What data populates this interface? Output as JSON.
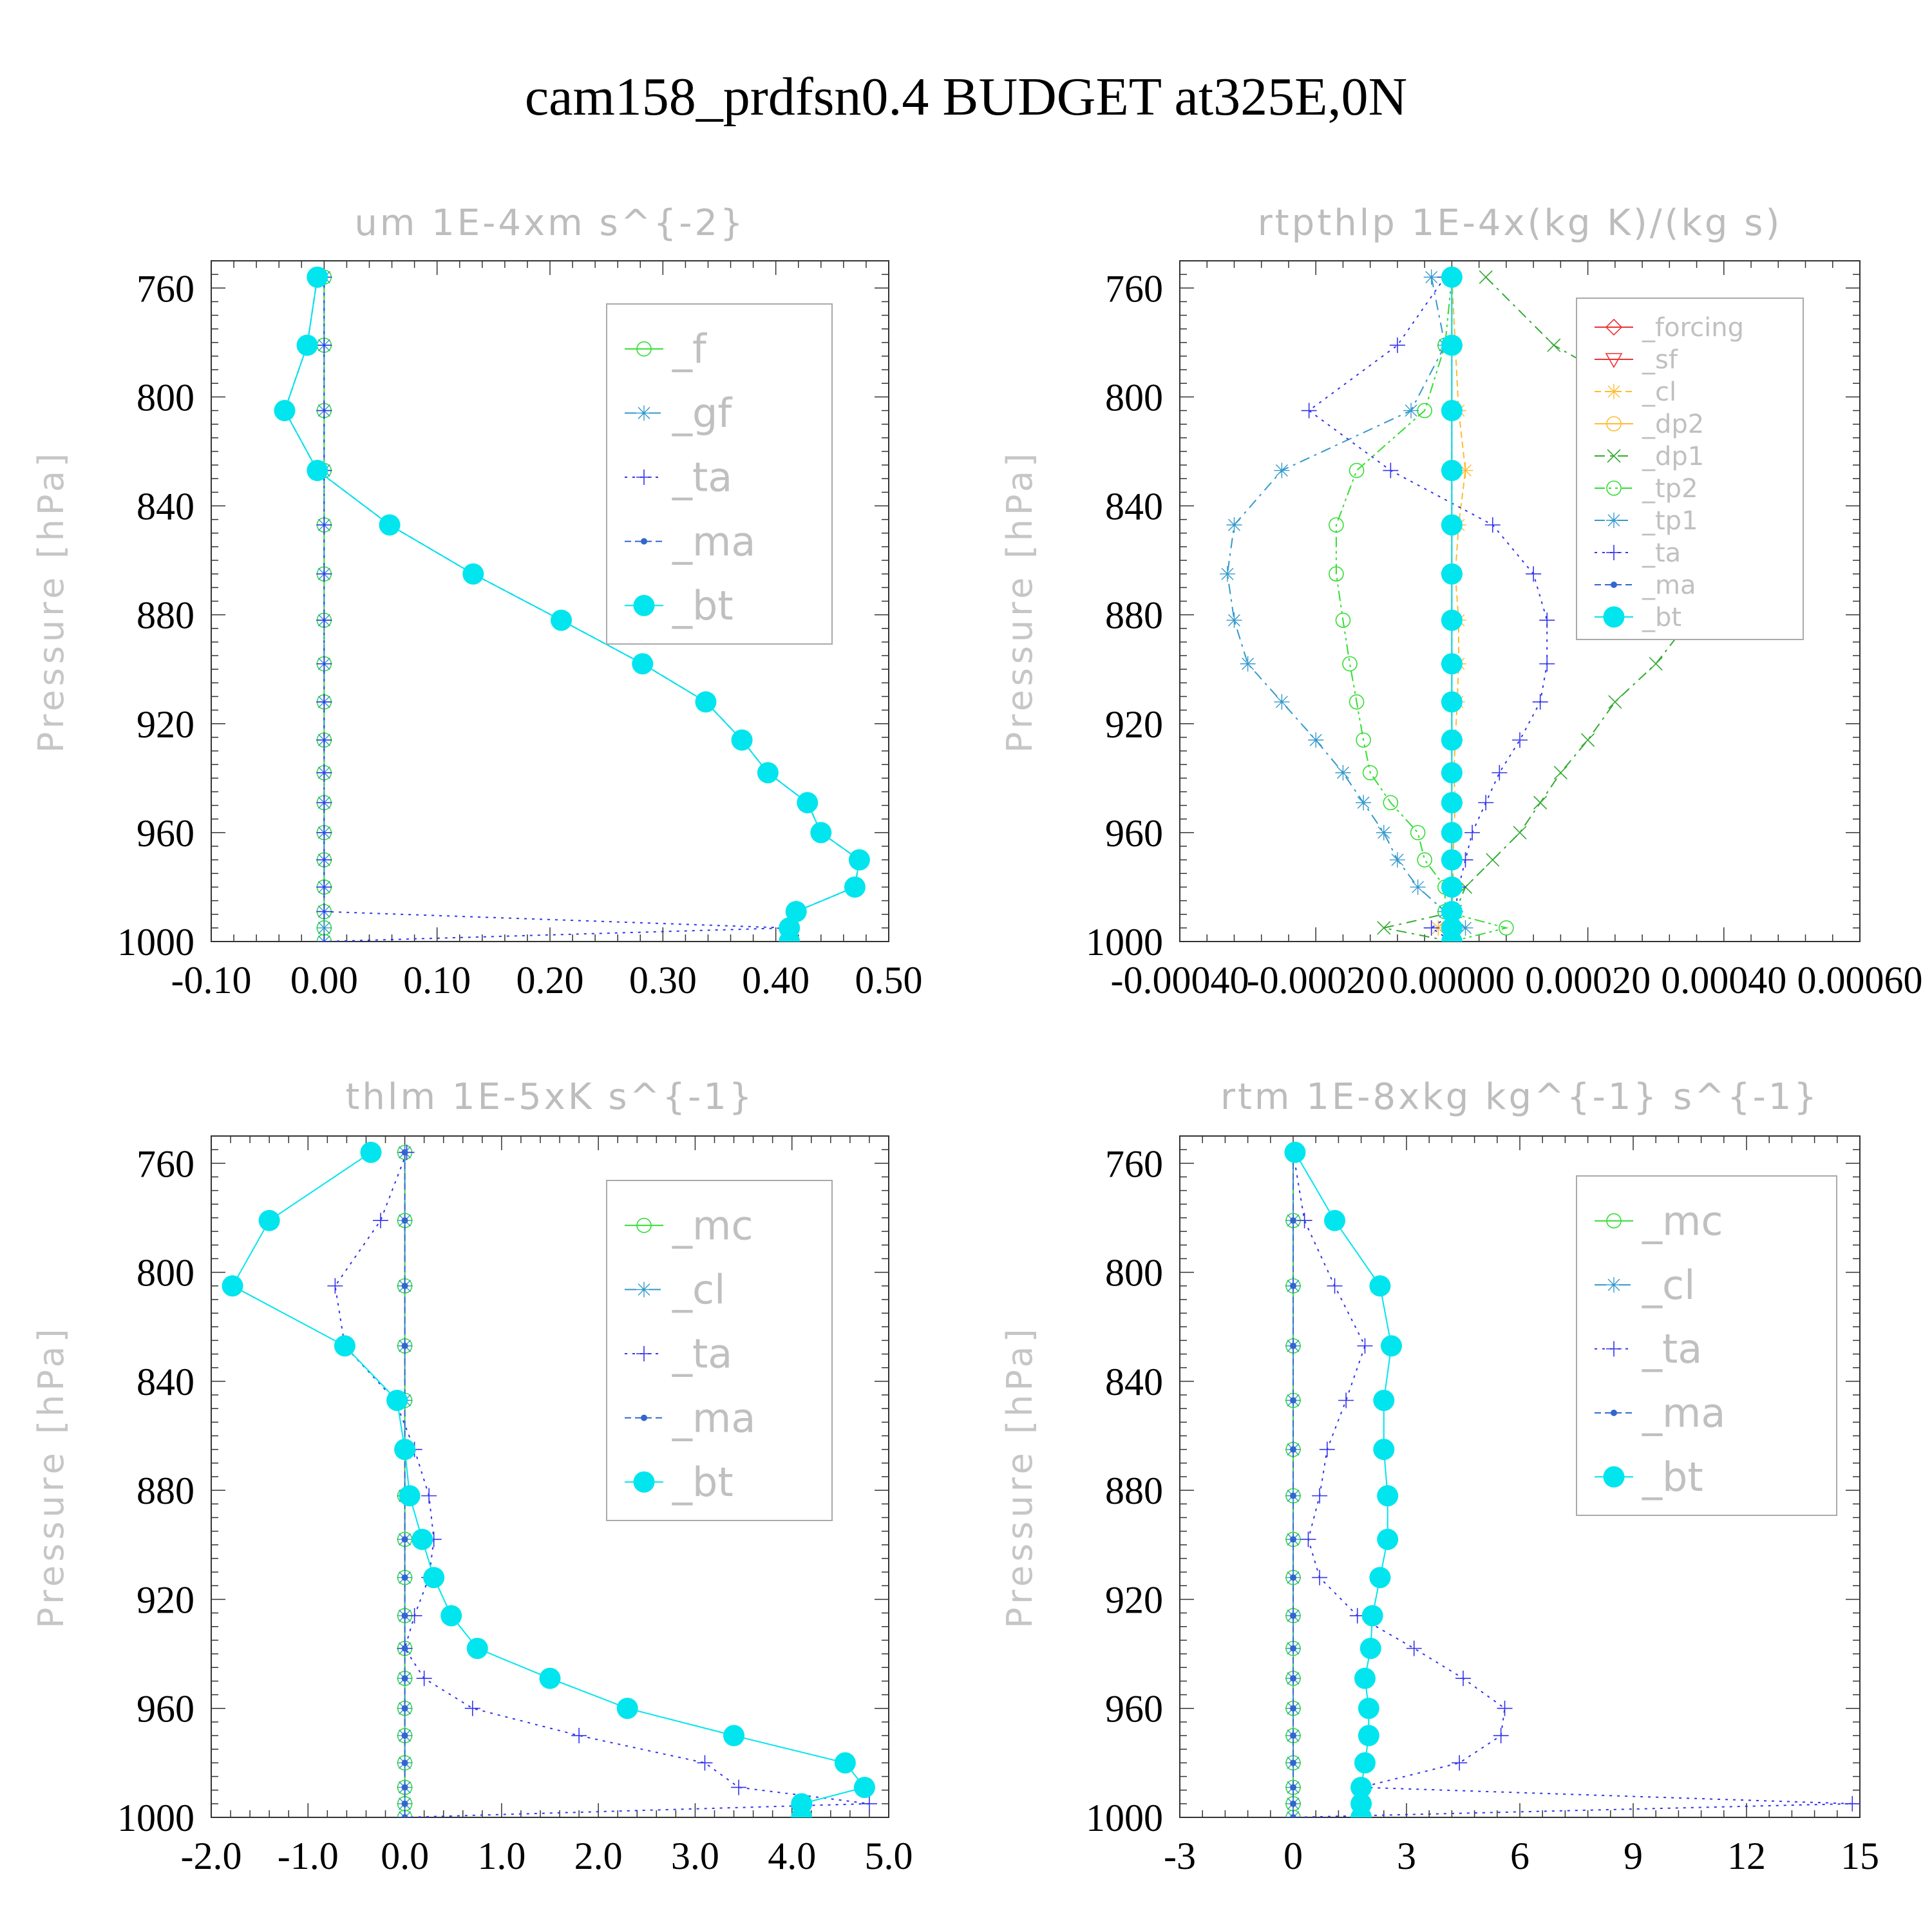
{
  "title": "cam158_prdfsn0.4  BUDGET at325E,0N",
  "chart_data": [
    {
      "type": "line",
      "title": "um  1E-4xm s^{-2}",
      "ylabel": "Pressure [hPa]",
      "xlim": [
        -0.1,
        0.5
      ],
      "ylim": [
        1000,
        750
      ],
      "xticks": [
        "-0.10",
        "0.00",
        "0.10",
        "0.20",
        "0.30",
        "0.40",
        "0.50"
      ],
      "yticks": [
        "760",
        "800",
        "840",
        "880",
        "920",
        "960",
        "1000"
      ],
      "pressure": [
        756,
        781,
        805,
        827,
        847,
        865,
        882,
        898,
        912,
        926,
        938,
        949,
        960,
        970,
        980,
        989,
        995,
        1000
      ],
      "series": [
        {
          "name": "_f",
          "color": "#33dd33",
          "dash": "",
          "marker": "circle-open",
          "values": [
            0,
            0,
            0,
            0,
            0,
            0,
            0,
            0,
            0,
            0,
            0,
            0,
            0,
            0,
            0,
            0,
            0,
            0
          ]
        },
        {
          "name": "_gf",
          "color": "#3399cc",
          "dash": "18,8,4,8",
          "marker": "star",
          "values": [
            0,
            0,
            0,
            0,
            0,
            0,
            0,
            0,
            0,
            0,
            0,
            0,
            0,
            0,
            0,
            0,
            0,
            0
          ]
        },
        {
          "name": "_ta",
          "color": "#3333ee",
          "dash": "4,8",
          "marker": "plus",
          "values": [
            0,
            0,
            0,
            0,
            0,
            0,
            0,
            0,
            0,
            0,
            0,
            0,
            0,
            0,
            0,
            0,
            0.41,
            0
          ]
        },
        {
          "name": "_ma",
          "color": "#3366cc",
          "dash": "10,6",
          "marker": "dot",
          "values": [
            -0.006,
            -0.015,
            -0.035,
            -0.006,
            0.058,
            0.132,
            0.21,
            0.282,
            0.338,
            0.37,
            0.393,
            0.428,
            0.44,
            0.474,
            0.47,
            0.418,
            0.412,
            0.412
          ]
        },
        {
          "name": "_bt",
          "color": "#00e5ee",
          "dash": "",
          "marker": "filled",
          "values": [
            -0.006,
            -0.015,
            -0.035,
            -0.006,
            0.058,
            0.132,
            0.21,
            0.282,
            0.338,
            0.37,
            0.393,
            0.428,
            0.44,
            0.474,
            0.47,
            0.418,
            0.412,
            0.412
          ]
        }
      ],
      "legend_fs": 62
    },
    {
      "type": "line",
      "title": "rtpthlp  1E-4x(kg K)/(kg s)",
      "ylabel": "Pressure [hPa]",
      "xlim": [
        -0.0004,
        0.0006
      ],
      "ylim": [
        1000,
        750
      ],
      "xticks": [
        "-0.00040",
        "-0.00020",
        "0.00000",
        "0.00020",
        "0.00040",
        "0.00060"
      ],
      "yticks": [
        "760",
        "800",
        "840",
        "880",
        "920",
        "960",
        "1000"
      ],
      "pressure": [
        756,
        781,
        805,
        827,
        847,
        865,
        882,
        898,
        912,
        926,
        938,
        949,
        960,
        970,
        980,
        989,
        995,
        1000
      ],
      "series": [
        {
          "name": "_forcing",
          "color": "#ee3333",
          "dash": "",
          "marker": "diamond",
          "values": [
            0,
            0,
            0,
            0,
            0,
            0,
            0,
            0,
            0,
            0,
            0,
            0,
            0,
            0,
            0,
            0,
            0,
            0
          ]
        },
        {
          "name": "_sf",
          "color": "#ee3333",
          "dash": "",
          "marker": "triangle",
          "values": [
            0,
            0,
            0,
            0,
            0,
            0,
            0,
            0,
            0,
            0,
            0,
            0,
            0,
            0,
            0,
            0,
            0,
            0
          ]
        },
        {
          "name": "_cl",
          "color": "#ffbb33",
          "dash": "10,6",
          "marker": "star",
          "values": [
            0,
            5e-06,
            1e-05,
            2e-05,
            1e-05,
            5e-06,
            1e-05,
            1e-05,
            8e-06,
            5e-06,
            3e-06,
            5e-06,
            3e-06,
            2e-06,
            2e-06,
            0,
            -2e-05,
            0
          ]
        },
        {
          "name": "_dp2",
          "color": "#ffbb33",
          "dash": "",
          "marker": "circle-open",
          "values": [
            0,
            0,
            0,
            0,
            0,
            0,
            0,
            0,
            0,
            0,
            0,
            0,
            0,
            0,
            0,
            0,
            0,
            0
          ]
        },
        {
          "name": "_dp1",
          "color": "#33aa33",
          "dash": "16,8,4,8",
          "marker": "x",
          "values": [
            5e-05,
            0.00015,
            0.00032,
            0.00046,
            0.00044,
            0.0004,
            0.00035,
            0.0003,
            0.00024,
            0.0002,
            0.00016,
            0.00013,
            0.0001,
            6e-05,
            2e-05,
            5e-06,
            -0.0001,
            0
          ]
        },
        {
          "name": "_tp2",
          "color": "#33dd33",
          "dash": "16,6,4,6,4,6",
          "marker": "circle-open",
          "values": [
            0,
            -1e-05,
            -4e-05,
            -0.00014,
            -0.00017,
            -0.00017,
            -0.00016,
            -0.00015,
            -0.00014,
            -0.00013,
            -0.00012,
            -9e-05,
            -5e-05,
            -4e-05,
            -1e-05,
            -1e-05,
            8e-05,
            0
          ]
        },
        {
          "name": "_tp1",
          "color": "#3399cc",
          "dash": "16,8,4,8",
          "marker": "star",
          "values": [
            -3e-05,
            -1e-05,
            -6e-05,
            -0.00025,
            -0.00032,
            -0.00033,
            -0.00032,
            -0.0003,
            -0.00025,
            -0.0002,
            -0.00016,
            -0.00013,
            -0.0001,
            -8e-05,
            -5e-05,
            -1e-05,
            2e-05,
            0
          ]
        },
        {
          "name": "_ta",
          "color": "#3333ee",
          "dash": "4,8",
          "marker": "plus",
          "values": [
            -1e-05,
            -8e-05,
            -0.00021,
            -9e-05,
            6e-05,
            0.00012,
            0.00014,
            0.00014,
            0.00013,
            0.0001,
            7e-05,
            5e-05,
            3e-05,
            2e-05,
            1e-05,
            5e-06,
            -3e-05,
            0
          ]
        },
        {
          "name": "_ma",
          "color": "#3366cc",
          "dash": "10,6",
          "marker": "dot",
          "values": [
            0,
            0,
            0,
            0,
            0,
            0,
            0,
            0,
            0,
            0,
            0,
            0,
            0,
            0,
            0,
            0,
            0,
            0
          ]
        },
        {
          "name": "_bt",
          "color": "#00e5ee",
          "dash": "",
          "marker": "filled",
          "values": [
            0,
            0,
            0,
            0,
            0,
            0,
            0,
            0,
            0,
            0,
            0,
            0,
            0,
            0,
            0,
            0,
            0,
            0
          ]
        }
      ],
      "legend_fs": 40
    },
    {
      "type": "line",
      "title": "thlm  1E-5xK s^{-1}",
      "ylabel": "Pressure [hPa]",
      "xlim": [
        -2.0,
        5.0
      ],
      "ylim": [
        1000,
        750
      ],
      "xticks": [
        "-2.0",
        "-1.0",
        "0.0",
        "1.0",
        "2.0",
        "3.0",
        "4.0",
        "5.0"
      ],
      "yticks": [
        "760",
        "800",
        "840",
        "880",
        "920",
        "960",
        "1000"
      ],
      "pressure": [
        756,
        781,
        805,
        827,
        847,
        865,
        882,
        898,
        912,
        926,
        938,
        949,
        960,
        970,
        980,
        989,
        995,
        1000
      ],
      "series": [
        {
          "name": "_mc",
          "color": "#33dd33",
          "dash": "",
          "marker": "circle-open",
          "values": [
            0,
            0,
            0,
            0,
            0,
            0,
            0,
            0,
            0,
            0,
            0,
            0,
            0,
            0,
            0,
            0,
            0,
            0
          ]
        },
        {
          "name": "_cl",
          "color": "#3399cc",
          "dash": "18,8,4,8",
          "marker": "star",
          "values": [
            0,
            0,
            0,
            0,
            0,
            0,
            0,
            0,
            0,
            0,
            0,
            0,
            0,
            0,
            0,
            0,
            0,
            0
          ]
        },
        {
          "name": "_ta",
          "color": "#3333ee",
          "dash": "4,8",
          "marker": "plus",
          "values": [
            0.02,
            -0.25,
            -0.72,
            -0.62,
            -0.1,
            0.1,
            0.25,
            0.3,
            0.25,
            0.1,
            0.0,
            0.2,
            0.7,
            1.8,
            3.1,
            3.45,
            4.8,
            0
          ]
        },
        {
          "name": "_ma",
          "color": "#3366cc",
          "dash": "10,6",
          "marker": "dot",
          "values": [
            0,
            0,
            0,
            0,
            0,
            0,
            0,
            0,
            0,
            0,
            0,
            0,
            0,
            0,
            0,
            0,
            0,
            0
          ]
        },
        {
          "name": "_bt",
          "color": "#00e5ee",
          "dash": "",
          "marker": "filled",
          "values": [
            -0.35,
            -1.4,
            -1.78,
            -0.62,
            -0.08,
            0.0,
            0.05,
            0.18,
            0.3,
            0.48,
            0.75,
            1.5,
            2.3,
            3.4,
            4.55,
            4.75,
            4.1,
            4.1
          ]
        }
      ],
      "legend_fs": 62
    },
    {
      "type": "line",
      "title": "rtm  1E-8xkg kg^{-1} s^{-1}",
      "ylabel": "Pressure [hPa]",
      "xlim": [
        -3,
        15
      ],
      "ylim": [
        1000,
        750
      ],
      "xticks": [
        "-3",
        "0",
        "3",
        "6",
        "9",
        "12",
        "15"
      ],
      "yticks": [
        "760",
        "800",
        "840",
        "880",
        "920",
        "960",
        "1000"
      ],
      "pressure": [
        756,
        781,
        805,
        827,
        847,
        865,
        882,
        898,
        912,
        926,
        938,
        949,
        960,
        970,
        980,
        989,
        995,
        1000
      ],
      "series": [
        {
          "name": "_mc",
          "color": "#33dd33",
          "dash": "",
          "marker": "circle-open",
          "values": [
            0,
            0,
            0,
            0,
            0,
            0,
            0,
            0,
            0,
            0,
            0,
            0,
            0,
            0,
            0,
            0,
            0,
            0
          ]
        },
        {
          "name": "_cl",
          "color": "#3399cc",
          "dash": "18,8,4,8",
          "marker": "star",
          "values": [
            0,
            0,
            0,
            0,
            0,
            0,
            0,
            0,
            0,
            0,
            0,
            0,
            0,
            0,
            0,
            0,
            0,
            0
          ]
        },
        {
          "name": "_ta",
          "color": "#3333ee",
          "dash": "4,8",
          "marker": "plus",
          "values": [
            0,
            0.3,
            1.1,
            1.9,
            1.4,
            0.9,
            0.7,
            0.4,
            0.7,
            1.7,
            3.2,
            4.5,
            5.6,
            5.5,
            4.4,
            1.8,
            14.8,
            0
          ]
        },
        {
          "name": "_ma",
          "color": "#3366cc",
          "dash": "10,6",
          "marker": "dot",
          "values": [
            0,
            0,
            0,
            0,
            0,
            0,
            0,
            0,
            0,
            0,
            0,
            0,
            0,
            0,
            0,
            0,
            0,
            0
          ]
        },
        {
          "name": "_bt",
          "color": "#00e5ee",
          "dash": "",
          "marker": "filled",
          "values": [
            0.05,
            1.1,
            2.3,
            2.6,
            2.4,
            2.4,
            2.5,
            2.5,
            2.3,
            2.1,
            2.05,
            1.9,
            2.0,
            2.0,
            1.9,
            1.8,
            1.8,
            1.8
          ]
        }
      ],
      "legend_fs": 62
    }
  ]
}
